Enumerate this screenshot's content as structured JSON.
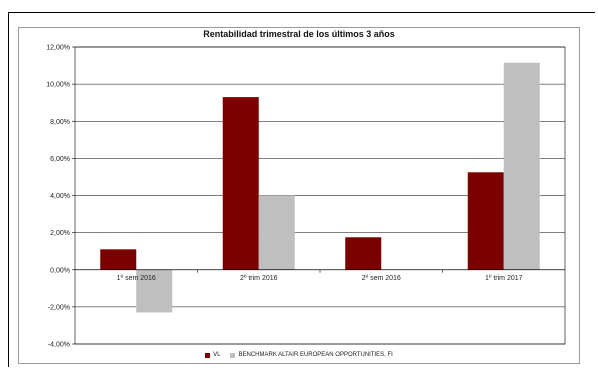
{
  "chart_data": {
    "type": "bar",
    "title": "Rentabilidad trimestral de los últimos 3 años",
    "categories": [
      "1º sem 2016",
      "2º trim 2016",
      "2º sem 2016",
      "1º trim 2017"
    ],
    "series": [
      {
        "name": "VL",
        "values": [
          1.1,
          9.3,
          1.75,
          5.25
        ],
        "color": "#7b0000"
      },
      {
        "name": "BENCHMARK ALTAIR EUROPEAN OPPORTUNITIES,  FI",
        "values": [
          -2.3,
          4.0,
          0.0,
          11.15
        ],
        "color": "#bfbfbf"
      }
    ],
    "ylim": [
      -4,
      12
    ],
    "yticks": [
      -4,
      -2,
      0,
      2,
      4,
      6,
      8,
      10,
      12
    ],
    "ytick_labels": [
      "-4,00%",
      "-2,00%",
      "0,00%",
      "2,00%",
      "4,00%",
      "6,00%",
      "8,00%",
      "10,00%",
      "12,00%"
    ],
    "grid": true,
    "legend_position": "bottom"
  }
}
